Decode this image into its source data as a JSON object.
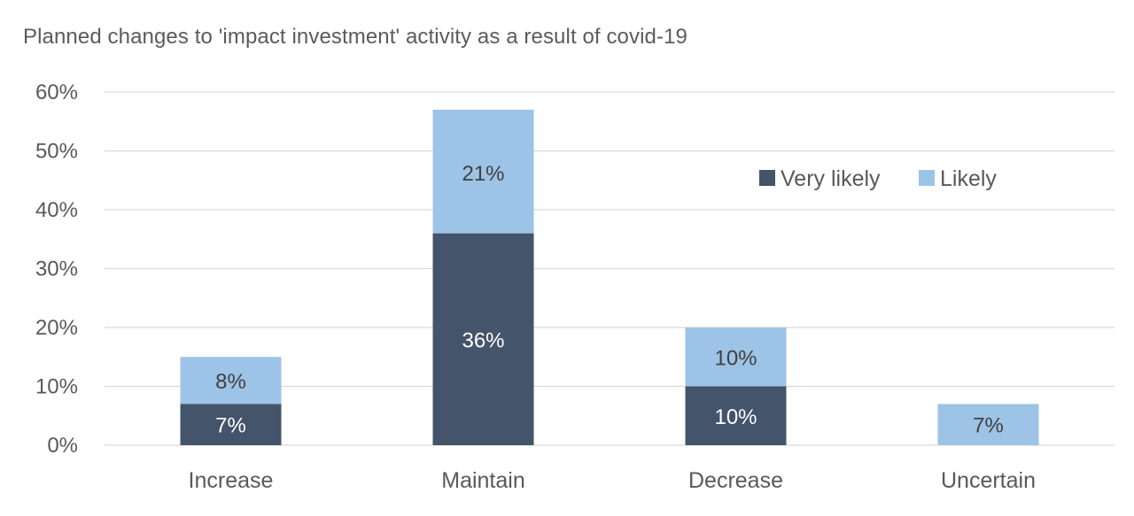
{
  "chart_data": {
    "type": "bar",
    "stacked": true,
    "title": "Planned changes to 'impact investment' activity as a result of covid-19",
    "categories": [
      "Increase",
      "Maintain",
      "Decrease",
      "Uncertain"
    ],
    "series": [
      {
        "name": "Very likely",
        "values": [
          7,
          36,
          10,
          0
        ],
        "labels": [
          "7%",
          "36%",
          "10%",
          ""
        ],
        "color": "#44546a",
        "label_color": "#ffffff"
      },
      {
        "name": "Likely",
        "values": [
          8,
          21,
          10,
          7
        ],
        "labels": [
          "8%",
          "21%",
          "10%",
          "7%"
        ],
        "color": "#9dc3e6",
        "label_color": "#404040"
      }
    ],
    "y_ticks": [
      "0%",
      "10%",
      "20%",
      "30%",
      "40%",
      "50%",
      "60%"
    ],
    "ylim": [
      0,
      60
    ],
    "y_unit": "%",
    "grid": true,
    "legend": "top-right"
  }
}
